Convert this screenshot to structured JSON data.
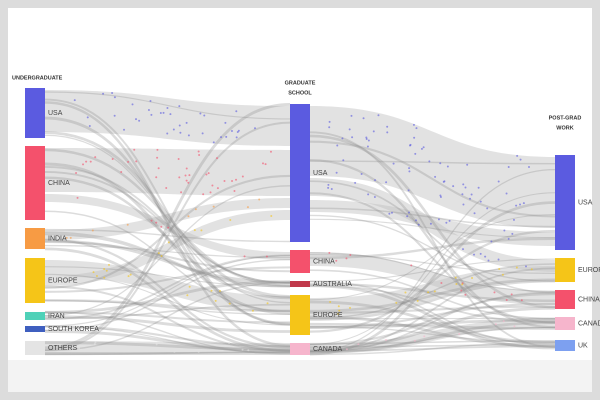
{
  "columns": [
    {
      "title_lines": [
        "UNDERGRADUATE"
      ],
      "nodes": [
        {
          "label": "USA",
          "color": "#5b5be0"
        },
        {
          "label": "CHINA",
          "color": "#f4516c"
        },
        {
          "label": "INDIA",
          "color": "#f79b44"
        },
        {
          "label": "EUROPE",
          "color": "#f5c518"
        },
        {
          "label": "IRAN",
          "color": "#4fd1b8"
        },
        {
          "label": "SOUTH KOREA",
          "color": "#3f5fbf"
        },
        {
          "label": "OTHERS",
          "color": "#e4e4e4"
        }
      ]
    },
    {
      "title_lines": [
        "GRADUATE",
        "SCHOOL"
      ],
      "nodes": [
        {
          "label": "USA",
          "color": "#5b5be0"
        },
        {
          "label": "CHINA",
          "color": "#f4516c"
        },
        {
          "label": "AUSTRALIA",
          "color": "#c0394b"
        },
        {
          "label": "EUROPE",
          "color": "#f5c518"
        },
        {
          "label": "CANADA",
          "color": "#f6b5cc"
        }
      ]
    },
    {
      "title_lines": [
        "POST-GRAD",
        "WORK"
      ],
      "nodes": [
        {
          "label": "USA",
          "color": "#5b5be0"
        },
        {
          "label": "EUROPE",
          "color": "#f5c518"
        },
        {
          "label": "CHINA",
          "color": "#f4516c"
        },
        {
          "label": "CANADA",
          "color": "#f6b5cc"
        },
        {
          "label": "UK",
          "color": "#7da0f0"
        }
      ]
    }
  ]
}
